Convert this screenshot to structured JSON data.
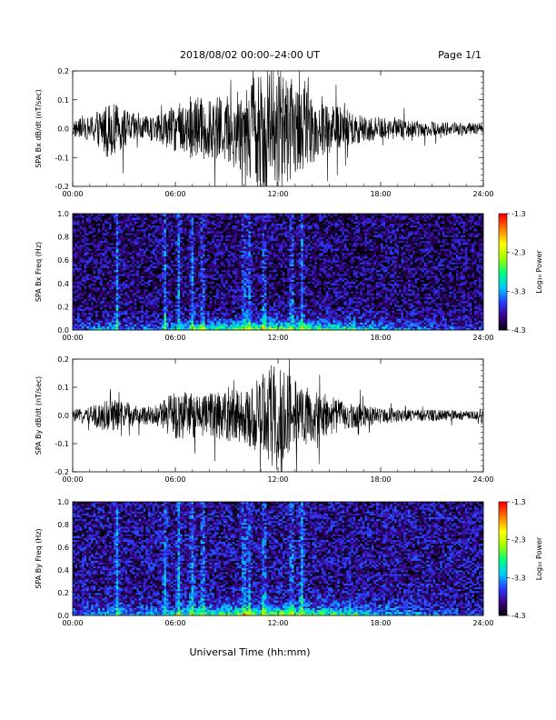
{
  "header": {
    "title": "2018/08/02  00:00–24:00 UT",
    "page": "Page 1/1"
  },
  "x_axis_title": "Universal Time (hh:mm)",
  "colorbar": {
    "label": "Log₁₀ Power",
    "ticks": [
      "-1.3",
      "-2.3",
      "-3.3",
      "-4.3"
    ],
    "range": [
      -4.3,
      -1.3
    ],
    "colors": [
      "#000000",
      "#3a0080",
      "#2a3cff",
      "#00c8ff",
      "#00ff80",
      "#a0ff00",
      "#ffff00",
      "#ff8000",
      "#ff0000"
    ]
  },
  "chart_data": [
    {
      "type": "line",
      "ylabel": "SPA Bx dB/dt (nT/sec)",
      "xlim": [
        0,
        24
      ],
      "ylim": [
        -0.2,
        0.2
      ],
      "xticks": [
        "00:00",
        "06:00",
        "12:00",
        "18:00",
        "24:00"
      ],
      "yticks": [
        "0.2",
        "0.1",
        "0.0",
        "-0.1",
        "-0.2"
      ],
      "x": [
        0,
        1,
        2,
        3,
        4,
        5,
        6,
        7,
        8,
        9,
        10,
        11,
        12,
        13,
        14,
        15,
        16,
        17,
        18,
        19,
        20,
        21,
        22,
        23,
        24
      ],
      "amplitude": [
        0.03,
        0.04,
        0.1,
        0.07,
        0.04,
        0.05,
        0.08,
        0.12,
        0.1,
        0.12,
        0.16,
        0.22,
        0.22,
        0.16,
        0.12,
        0.09,
        0.07,
        0.05,
        0.04,
        0.035,
        0.03,
        0.025,
        0.025,
        0.02,
        0.02
      ],
      "color": "#000000"
    },
    {
      "type": "heatmap",
      "ylabel": "SPA Bx Freq (Hz)",
      "xlim": [
        0,
        24
      ],
      "ylim": [
        0,
        1.0
      ],
      "xticks": [
        "00:00",
        "06:00",
        "12:00",
        "18:00",
        "24:00"
      ],
      "yticks": [
        "1.0",
        "0.8",
        "0.6",
        "0.4",
        "0.2",
        "0.0"
      ],
      "x": [
        0,
        1,
        2,
        3,
        4,
        5,
        6,
        7,
        8,
        9,
        10,
        11,
        12,
        13,
        14,
        15,
        16,
        17,
        18,
        19,
        20,
        21,
        22,
        23,
        24
      ],
      "low_freq_power": [
        -3.5,
        -3.4,
        -3.0,
        -3.2,
        -3.4,
        -3.2,
        -3.0,
        -2.6,
        -2.6,
        -2.5,
        -2.4,
        -2.2,
        -2.2,
        -2.3,
        -2.4,
        -2.5,
        -2.6,
        -2.8,
        -3.0,
        -3.2,
        -3.3,
        -3.4,
        -3.5,
        -3.6,
        -3.6
      ],
      "background_power": -4.0
    },
    {
      "type": "line",
      "ylabel": "SPA By dB/dt (nT/sec)",
      "xlim": [
        0,
        24
      ],
      "ylim": [
        -0.2,
        0.2
      ],
      "xticks": [
        "00:00",
        "06:00",
        "12:00",
        "18:00",
        "24:00"
      ],
      "yticks": [
        "0.2",
        "0.1",
        "0.0",
        "-0.1",
        "-0.2"
      ],
      "x": [
        0,
        1,
        2,
        3,
        4,
        5,
        6,
        7,
        8,
        9,
        10,
        11,
        12,
        13,
        14,
        15,
        16,
        17,
        18,
        19,
        20,
        21,
        22,
        23,
        24
      ],
      "amplitude": [
        0.02,
        0.03,
        0.06,
        0.05,
        0.03,
        0.04,
        0.09,
        0.08,
        0.08,
        0.09,
        0.1,
        0.14,
        0.2,
        0.12,
        0.1,
        0.07,
        0.05,
        0.04,
        0.03,
        0.025,
        0.02,
        0.02,
        0.02,
        0.015,
        0.015
      ],
      "color": "#000000"
    },
    {
      "type": "heatmap",
      "ylabel": "SPA By Freq (Hz)",
      "xlim": [
        0,
        24
      ],
      "ylim": [
        0,
        1.0
      ],
      "xticks": [
        "00:00",
        "06:00",
        "12:00",
        "18:00",
        "24:00"
      ],
      "yticks": [
        "1.0",
        "0.8",
        "0.6",
        "0.4",
        "0.2",
        "0.0"
      ],
      "x": [
        0,
        1,
        2,
        3,
        4,
        5,
        6,
        7,
        8,
        9,
        10,
        11,
        12,
        13,
        14,
        15,
        16,
        17,
        18,
        19,
        20,
        21,
        22,
        23,
        24
      ],
      "low_freq_power": [
        -3.4,
        -3.3,
        -3.0,
        -3.1,
        -3.2,
        -3.1,
        -2.9,
        -2.5,
        -2.5,
        -2.4,
        -2.3,
        -2.3,
        -2.2,
        -2.3,
        -2.4,
        -2.5,
        -2.6,
        -2.8,
        -3.0,
        -3.2,
        -3.3,
        -3.4,
        -3.5,
        -3.5,
        -3.6
      ],
      "background_power": -3.9
    }
  ]
}
